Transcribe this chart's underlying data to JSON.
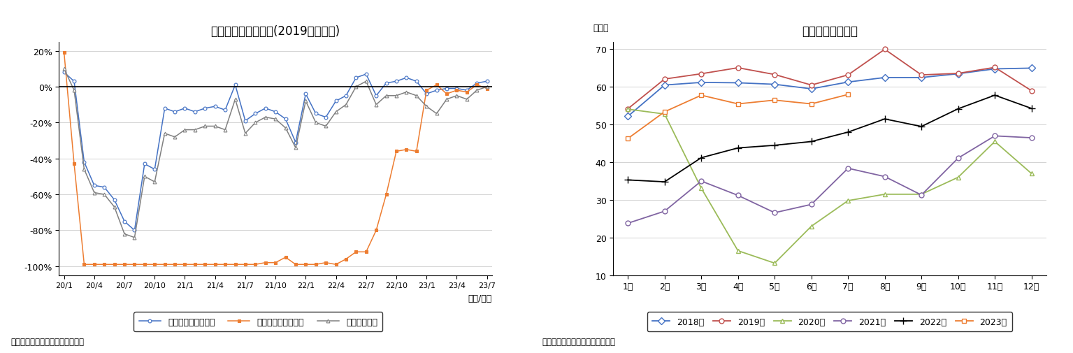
{
  "chart1": {
    "title": "延べ宿泊者数の推移(2019年同月比)",
    "xlabel": "（年/月）",
    "source": "（出典）観光庁「宿泊旅行統計」",
    "ylim": [
      -105,
      25
    ],
    "yticks": [
      -100,
      -80,
      -60,
      -40,
      -20,
      0,
      20
    ],
    "ytick_labels": [
      "-100%",
      "-80%",
      "-60%",
      "-40%",
      "-20%",
      "0%",
      "20%"
    ],
    "xtick_labels": [
      "20/1",
      "20/4",
      "20/7",
      "20/10",
      "21/1",
      "21/4",
      "21/7",
      "21/10",
      "22/1",
      "22/4",
      "22/7",
      "22/10",
      "23/1",
      "23/4",
      "23/7"
    ],
    "japanese_total": {
      "label": "日本人延べ宿泊者数",
      "color": "#4472C4",
      "marker": "o",
      "values": [
        8,
        3,
        -42,
        -55,
        -56,
        -63,
        -75,
        -80,
        -43,
        -46,
        -12,
        -14,
        -12,
        -14,
        -12,
        -11,
        -13,
        1,
        -19,
        -15,
        -12,
        -14,
        -18,
        -31,
        -4,
        -15,
        -17,
        -8,
        -5,
        5,
        7,
        -5,
        2,
        3,
        5,
        3,
        -4,
        -2,
        -1,
        -1,
        -2,
        2,
        3
      ]
    },
    "foreign_total": {
      "label": "外国人延べ宿泊者数",
      "color": "#ED7D31",
      "marker": "s",
      "values": [
        19,
        -43,
        -99,
        -99,
        -99,
        -99,
        -99,
        -99,
        -99,
        -99,
        -99,
        -99,
        -99,
        -99,
        -99,
        -99,
        -99,
        -99,
        -99,
        -99,
        -98,
        -98,
        -95,
        -99,
        -99,
        -99,
        -98,
        -99,
        -96,
        -92,
        -92,
        -80,
        -60,
        -36,
        -35,
        -36,
        -2,
        1,
        -4,
        -2,
        -3,
        1,
        -1
      ]
    },
    "total": {
      "label": "延べ宿泊者数",
      "color": "#808080",
      "marker": "^",
      "values": [
        10,
        -2,
        -46,
        -59,
        -60,
        -67,
        -82,
        -84,
        -50,
        -53,
        -26,
        -28,
        -24,
        -24,
        -22,
        -22,
        -24,
        -7,
        -26,
        -20,
        -17,
        -18,
        -23,
        -34,
        -8,
        -20,
        -22,
        -14,
        -10,
        0,
        3,
        -10,
        -5,
        -5,
        -3,
        -5,
        -11,
        -15,
        -7,
        -5,
        -7,
        -2,
        0
      ]
    }
  },
  "chart2": {
    "title": "客室稼働率の推移",
    "ylabel": "（％）",
    "source": "（資料）観光庁「宿泊旅行統計」",
    "ylim": [
      10,
      72
    ],
    "yticks": [
      10,
      20,
      30,
      40,
      50,
      60,
      70
    ],
    "xtick_labels": [
      "1月",
      "2月",
      "3月",
      "4月",
      "5月",
      "6月",
      "7月",
      "8月",
      "9月",
      "10月",
      "11月",
      "12月"
    ],
    "series": {
      "2018年": {
        "color": "#4472C4",
        "marker": "D",
        "markersize": 5,
        "values": [
          52.2,
          60.5,
          61.2,
          61.1,
          60.7,
          59.5,
          61.3,
          62.5,
          62.5,
          63.5,
          64.8,
          65.0
        ]
      },
      "2019年": {
        "color": "#C0504D",
        "marker": "o",
        "markersize": 5,
        "values": [
          54.2,
          62.1,
          63.5,
          65.1,
          63.3,
          60.5,
          63.2,
          70.0,
          63.2,
          63.6,
          65.2,
          59.0
        ]
      },
      "2020年": {
        "color": "#9BBB59",
        "marker": "^",
        "markersize": 5,
        "values": [
          54.1,
          52.8,
          33.1,
          16.5,
          13.2,
          23.0,
          29.8,
          31.5,
          31.5,
          36.0,
          45.5,
          37.0
        ]
      },
      "2021年": {
        "color": "#8064A2",
        "marker": "o",
        "markersize": 5,
        "values": [
          23.8,
          27.0,
          35.0,
          31.2,
          26.6,
          28.8,
          38.4,
          36.2,
          31.3,
          41.1,
          47.0,
          46.5
        ]
      },
      "2022年": {
        "color": "#000000",
        "marker": "+",
        "markersize": 7,
        "values": [
          35.3,
          34.8,
          41.2,
          43.8,
          44.5,
          45.5,
          48.0,
          51.5,
          49.5,
          54.2,
          57.8,
          54.3
        ]
      },
      "2023年": {
        "color": "#ED7D31",
        "marker": "s",
        "markersize": 5,
        "values": [
          46.3,
          53.4,
          57.8,
          55.5,
          56.5,
          55.5,
          58.0,
          null,
          null,
          null,
          null,
          null
        ]
      }
    }
  }
}
